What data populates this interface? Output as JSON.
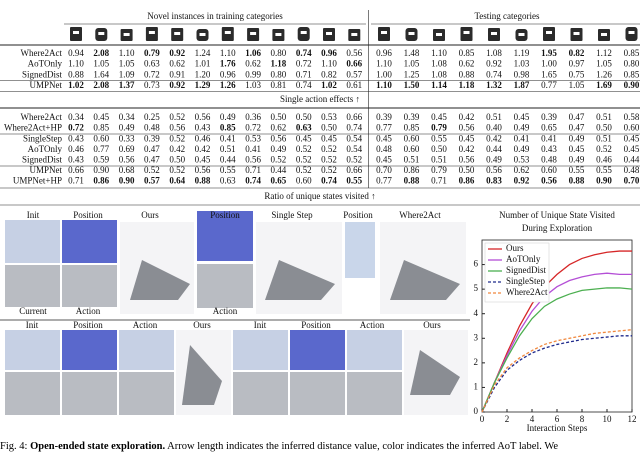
{
  "table": {
    "header": {
      "train": "Novel instances in training categories",
      "test": "Testing categories"
    },
    "blocks": [
      {
        "label": "Single action effects ↑",
        "rows": [
          {
            "name": "Where2Act",
            "cells": [
              "0.94",
              "2.08",
              "1.10",
              "0.79",
              "0.92",
              "1.24",
              "1.10",
              "1.06",
              "0.80",
              "0.74",
              "0.96",
              "0.56",
              "0.96",
              "1.48",
              "1.10",
              "0.85",
              "1.08",
              "1.19",
              "1.95",
              "0.82",
              "1.12",
              "0.85"
            ],
            "bold": [
              1,
              3,
              4,
              7,
              9,
              10,
              18,
              19
            ]
          },
          {
            "name": "AoTOnly",
            "cells": [
              "1.10",
              "1.05",
              "1.05",
              "0.63",
              "0.62",
              "1.01",
              "1.76",
              "0.62",
              "1.18",
              "0.72",
              "1.10",
              "0.66",
              "1.10",
              "1.05",
              "1.08",
              "0.62",
              "0.92",
              "1.03",
              "1.00",
              "0.97",
              "1.05",
              "0.80"
            ],
            "bold": [
              6,
              8,
              11
            ]
          },
          {
            "name": "SignedDist",
            "cells": [
              "0.88",
              "1.64",
              "1.09",
              "0.72",
              "0.91",
              "1.20",
              "0.96",
              "0.99",
              "0.80",
              "0.71",
              "0.82",
              "0.57",
              "1.00",
              "1.25",
              "1.08",
              "0.88",
              "0.74",
              "0.98",
              "1.65",
              "0.75",
              "1.26",
              "0.85"
            ],
            "bold": []
          },
          {
            "name": "UMPNet",
            "cells": [
              "1.02",
              "2.08",
              "1.37",
              "0.73",
              "0.92",
              "1.29",
              "1.26",
              "1.03",
              "0.81",
              "0.74",
              "1.02",
              "0.61",
              "1.10",
              "1.50",
              "1.14",
              "1.18",
              "1.32",
              "1.87",
              "0.77",
              "1.05",
              "1.69",
              "0.90"
            ],
            "bold": [
              0,
              1,
              2,
              4,
              5,
              6,
              10,
              12,
              13,
              14,
              15,
              16,
              17,
              20,
              21
            ]
          }
        ]
      },
      {
        "label": "Ratio of unique states visited ↑",
        "rows": [
          {
            "name": "Where2Act",
            "cells": [
              "0.34",
              "0.45",
              "0.34",
              "0.25",
              "0.52",
              "0.56",
              "0.49",
              "0.36",
              "0.50",
              "0.50",
              "0.53",
              "0.66",
              "0.39",
              "0.39",
              "0.45",
              "0.42",
              "0.51",
              "0.45",
              "0.39",
              "0.47",
              "0.51",
              "0.58"
            ],
            "bold": []
          },
          {
            "name": "Where2Act+HP",
            "cells": [
              "0.72",
              "0.85",
              "0.49",
              "0.48",
              "0.56",
              "0.43",
              "0.85",
              "0.72",
              "0.62",
              "0.63",
              "0.50",
              "0.74",
              "0.77",
              "0.85",
              "0.79",
              "0.56",
              "0.40",
              "0.49",
              "0.65",
              "0.47",
              "0.50",
              "0.60"
            ],
            "bold": [
              0,
              6,
              9,
              14
            ]
          },
          {
            "name": "SingleStep",
            "cells": [
              "0.43",
              "0.60",
              "0.33",
              "0.39",
              "0.52",
              "0.46",
              "0.41",
              "0.53",
              "0.56",
              "0.45",
              "0.45",
              "0.54",
              "0.45",
              "0.60",
              "0.55",
              "0.45",
              "0.42",
              "0.41",
              "0.41",
              "0.49",
              "0.51",
              "0.45"
            ],
            "bold": []
          },
          {
            "name": "AoTOnly",
            "cells": [
              "0.46",
              "0.77",
              "0.69",
              "0.47",
              "0.42",
              "0.42",
              "0.51",
              "0.41",
              "0.49",
              "0.52",
              "0.52",
              "0.54",
              "0.48",
              "0.60",
              "0.50",
              "0.42",
              "0.44",
              "0.49",
              "0.43",
              "0.45",
              "0.52",
              "0.45"
            ],
            "bold": []
          },
          {
            "name": "SignedDist",
            "cells": [
              "0.43",
              "0.59",
              "0.56",
              "0.47",
              "0.50",
              "0.45",
              "0.44",
              "0.56",
              "0.52",
              "0.52",
              "0.52",
              "0.52",
              "0.45",
              "0.51",
              "0.51",
              "0.56",
              "0.49",
              "0.53",
              "0.48",
              "0.49",
              "0.46",
              "0.44"
            ],
            "bold": []
          },
          {
            "name": "UMPNet",
            "cells": [
              "0.66",
              "0.90",
              "0.68",
              "0.52",
              "0.52",
              "0.56",
              "0.55",
              "0.71",
              "0.44",
              "0.52",
              "0.52",
              "0.66",
              "0.70",
              "0.86",
              "0.79",
              "0.50",
              "0.56",
              "0.62",
              "0.60",
              "0.55",
              "0.55",
              "0.48"
            ],
            "bold": []
          },
          {
            "name": "UMPNet+HP",
            "cells": [
              "0.71",
              "0.86",
              "0.90",
              "0.57",
              "0.64",
              "0.88",
              "0.63",
              "0.74",
              "0.65",
              "0.60",
              "0.74",
              "0.55",
              "0.77",
              "0.88",
              "0.71",
              "0.86",
              "0.83",
              "0.92",
              "0.56",
              "0.88",
              "0.90",
              "0.70"
            ],
            "bold": [
              1,
              2,
              3,
              4,
              5,
              7,
              8,
              10,
              11,
              13,
              15,
              16,
              17,
              18,
              19,
              20,
              21
            ]
          }
        ]
      }
    ]
  },
  "figure": {
    "top_labels": [
      "Init",
      "Position",
      "Ours",
      "Position",
      "Single Step",
      "Position",
      "Where2Act"
    ],
    "lower_labels": [
      "Current",
      "Action",
      "Action"
    ],
    "bottom_labels": [
      "Init",
      "Position",
      "Action",
      "Ours",
      "Init",
      "Position",
      "Action",
      "Ours"
    ]
  },
  "chart_data": {
    "type": "line",
    "title": [
      "Number of Unique State Visited",
      "During Exploration"
    ],
    "x_label": "Interaction Steps",
    "x": [
      0,
      1,
      2,
      3,
      4,
      5,
      6,
      7,
      8,
      9,
      10,
      11,
      12
    ],
    "xlim": [
      0,
      12
    ],
    "xticks": [
      0,
      2,
      4,
      6,
      8,
      10,
      12
    ],
    "ylim": [
      0,
      7
    ],
    "yticks": [
      0,
      1,
      2,
      3,
      4,
      5,
      6
    ],
    "legend": "upper left",
    "series": [
      {
        "name": "Ours",
        "color": "#d62728",
        "style": "solid",
        "values": [
          0,
          1.2,
          2.4,
          3.5,
          4.4,
          5.1,
          5.6,
          6.0,
          6.25,
          6.4,
          6.5,
          6.55,
          6.55
        ]
      },
      {
        "name": "AoTOnly",
        "color": "#b44fd6",
        "style": "solid",
        "values": [
          0,
          1.2,
          2.3,
          3.3,
          4.1,
          4.7,
          5.1,
          5.35,
          5.5,
          5.6,
          5.65,
          5.6,
          5.6
        ]
      },
      {
        "name": "SignedDist",
        "color": "#4caf50",
        "style": "solid",
        "values": [
          0,
          1.2,
          2.2,
          3.1,
          3.8,
          4.3,
          4.6,
          4.8,
          4.95,
          5.0,
          5.05,
          5.05,
          5.0
        ]
      },
      {
        "name": "SingleStep",
        "color": "#1f2a8c",
        "style": "dashed",
        "values": [
          0,
          1.0,
          1.7,
          2.1,
          2.4,
          2.6,
          2.75,
          2.85,
          2.95,
          3.0,
          3.05,
          3.1,
          3.1
        ]
      },
      {
        "name": "Where2Act",
        "color": "#f0883e",
        "style": "dashed",
        "values": [
          0,
          1.1,
          1.8,
          2.2,
          2.5,
          2.75,
          2.9,
          3.0,
          3.1,
          3.2,
          3.25,
          3.3,
          3.35
        ]
      }
    ]
  },
  "caption": {
    "label": "Fig. 4:",
    "title": "Open-ended state exploration.",
    "text": "Arrow length indicates the inferred distance value, color indicates the inferred AoT label. We"
  }
}
